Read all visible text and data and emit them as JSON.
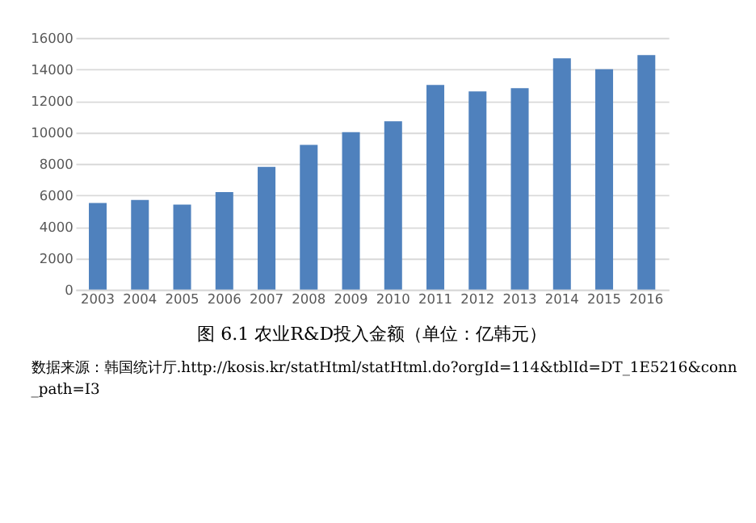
{
  "chart_data": {
    "type": "bar",
    "title": "图 6.1 农业R&D投入金额（单位：亿韩元）",
    "categories": [
      "2003",
      "2004",
      "2005",
      "2006",
      "2007",
      "2008",
      "2009",
      "2010",
      "2011",
      "2012",
      "2013",
      "2014",
      "2015",
      "2016"
    ],
    "values": [
      5500,
      5700,
      5400,
      6200,
      7800,
      9200,
      10000,
      10700,
      13000,
      12600,
      12800,
      14700,
      14000,
      14900
    ],
    "color": "#4f81bd",
    "ylim": [
      0,
      16000
    ],
    "yticks": [
      0,
      2000,
      4000,
      6000,
      8000,
      10000,
      12000,
      14000,
      16000
    ],
    "grid": "y",
    "annotations": [
      "数据来源：韩国统计厅.http://kosis.kr/statHtml/statHtml.do?orgId=114&tblId=DT_1E5216&conn_path=I3"
    ]
  }
}
